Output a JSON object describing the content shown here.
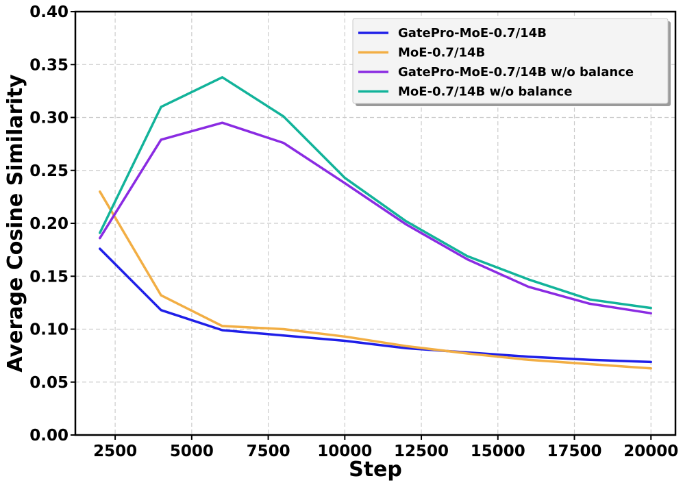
{
  "chart_data": {
    "type": "line",
    "title": "",
    "xlabel": "Step",
    "ylabel": "Average Cosine Similarity",
    "x": [
      2000,
      4000,
      6000,
      8000,
      10000,
      12000,
      14000,
      16000,
      18000,
      20000
    ],
    "xlim": [
      1200,
      20800
    ],
    "ylim": [
      0.0,
      0.4
    ],
    "xticks": [
      2500,
      5000,
      7500,
      10000,
      12500,
      15000,
      17500,
      20000
    ],
    "yticks": [
      0.0,
      0.05,
      0.1,
      0.15,
      0.2,
      0.25,
      0.3,
      0.35,
      0.4
    ],
    "xtick_labels": [
      "2500",
      "5000",
      "7500",
      "10000",
      "12500",
      "15000",
      "17500",
      "20000"
    ],
    "ytick_labels": [
      "0.00",
      "0.05",
      "0.10",
      "0.15",
      "0.20",
      "0.25",
      "0.30",
      "0.35",
      "0.40"
    ],
    "grid": true,
    "legend_position": "top-right",
    "series": [
      {
        "name": "GatePro-MoE-0.7/14B",
        "color": "#1f1fe8",
        "values": [
          0.176,
          0.118,
          0.099,
          0.094,
          0.089,
          0.082,
          0.078,
          0.074,
          0.071,
          0.069
        ]
      },
      {
        "name": "MoE-0.7/14B",
        "color": "#f2ae44",
        "values": [
          0.23,
          0.132,
          0.103,
          0.1,
          0.093,
          0.084,
          0.077,
          0.071,
          0.067,
          0.063
        ]
      },
      {
        "name": "GatePro-MoE-0.7/14B w/o balance",
        "color": "#8a2be2",
        "values": [
          0.186,
          0.279,
          0.295,
          0.276,
          0.238,
          0.199,
          0.166,
          0.14,
          0.124,
          0.115
        ]
      },
      {
        "name": "MoE-0.7/14B w/o balance",
        "color": "#12b39a",
        "values": [
          0.191,
          0.31,
          0.338,
          0.301,
          0.243,
          0.202,
          0.169,
          0.147,
          0.128,
          0.12
        ]
      }
    ]
  }
}
